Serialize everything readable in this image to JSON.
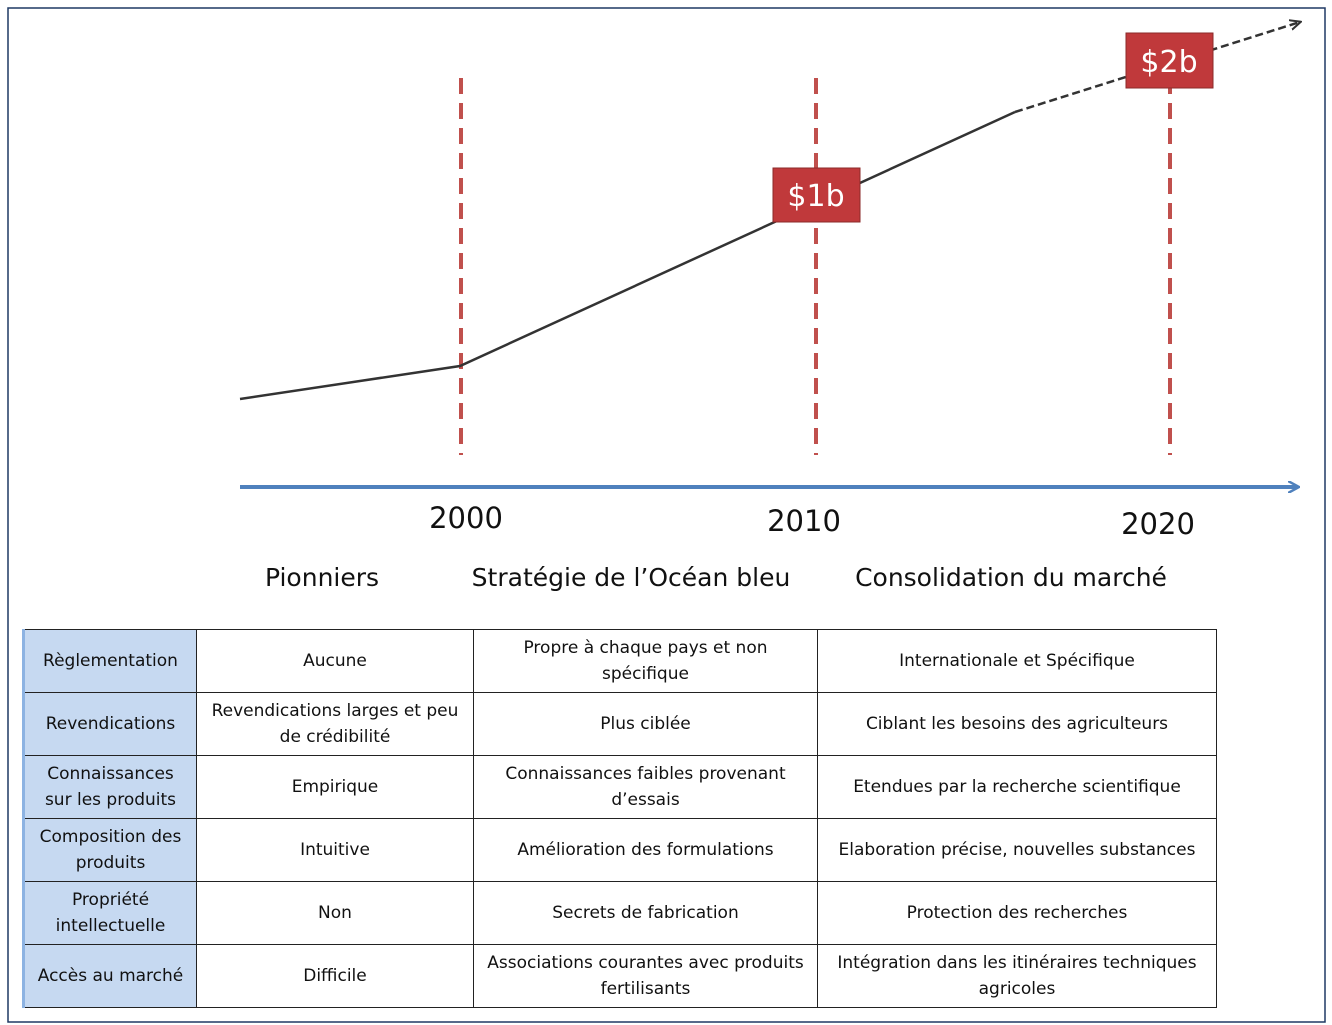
{
  "years": [
    "2000",
    "2010",
    "2020"
  ],
  "markers": [
    "$1b",
    "$2b"
  ],
  "phases": [
    "Pionniers",
    "Stratégie de l’Océan bleu",
    "Consolidation du marché"
  ],
  "table": {
    "rows": [
      [
        "Règlementation",
        "Aucune",
        "Propre à chaque pays et non spécifique",
        "Internationale et Spécifique"
      ],
      [
        "Revendications",
        "Revendications larges et peu de crédibilité",
        "Plus ciblée",
        "Ciblant les besoins des agriculteurs"
      ],
      [
        "Connaissances sur les produits",
        "Empirique",
        "Connaissances faibles provenant d’essais",
        "Etendues par la recherche scientifique"
      ],
      [
        "Composition des produits",
        "Intuitive",
        "Amélioration des formulations",
        "Elaboration précise, nouvelles substances"
      ],
      [
        "Propriété intellectuelle",
        "Non",
        "Secrets de fabrication",
        "Protection des recherches"
      ],
      [
        "Accès au marché",
        "Difficile",
        "Associations courantes avec produits fertilisants",
        "Intégration dans les itinéraires techniques agricoles"
      ]
    ]
  }
}
